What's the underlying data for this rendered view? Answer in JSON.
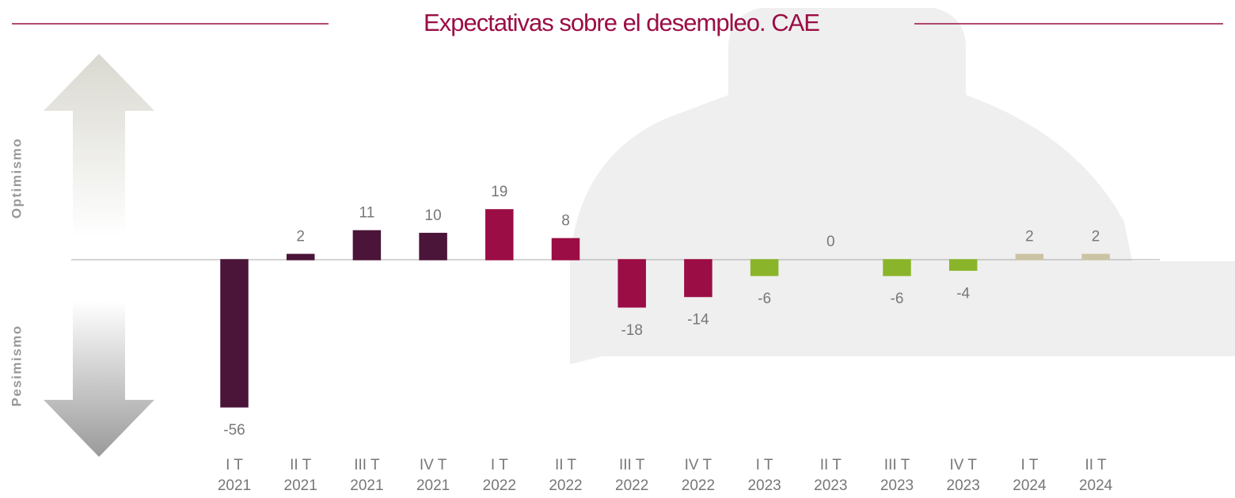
{
  "chart_data": {
    "type": "bar",
    "title": "Expectativas sobre el desempleo. CAE",
    "side_labels": [
      "Optimismo",
      "Pesimismo"
    ],
    "categories": [
      [
        "I T",
        "2021"
      ],
      [
        "II T",
        "2021"
      ],
      [
        "III T",
        "2021"
      ],
      [
        "IV T",
        "2021"
      ],
      [
        "I T",
        "2022"
      ],
      [
        "II T",
        "2022"
      ],
      [
        "III T",
        "2022"
      ],
      [
        "IV T",
        "2022"
      ],
      [
        "I T",
        "2023"
      ],
      [
        "II T",
        "2023"
      ],
      [
        "III T",
        "2023"
      ],
      [
        "IV T",
        "2023"
      ],
      [
        "I T",
        "2024"
      ],
      [
        "II T",
        "2024"
      ]
    ],
    "values": [
      -56,
      2,
      11,
      10,
      19,
      8,
      -18,
      -14,
      -6,
      0,
      -6,
      -4,
      2,
      2
    ],
    "colors": [
      "#4a1538",
      "#4a1538",
      "#4a1538",
      "#4a1538",
      "#9b0d45",
      "#9b0d45",
      "#9b0d45",
      "#9b0d45",
      "#8ab52a",
      "#8ab52a",
      "#8ab52a",
      "#8ab52a",
      "#cbc3a5",
      "#cbc3a5"
    ]
  }
}
